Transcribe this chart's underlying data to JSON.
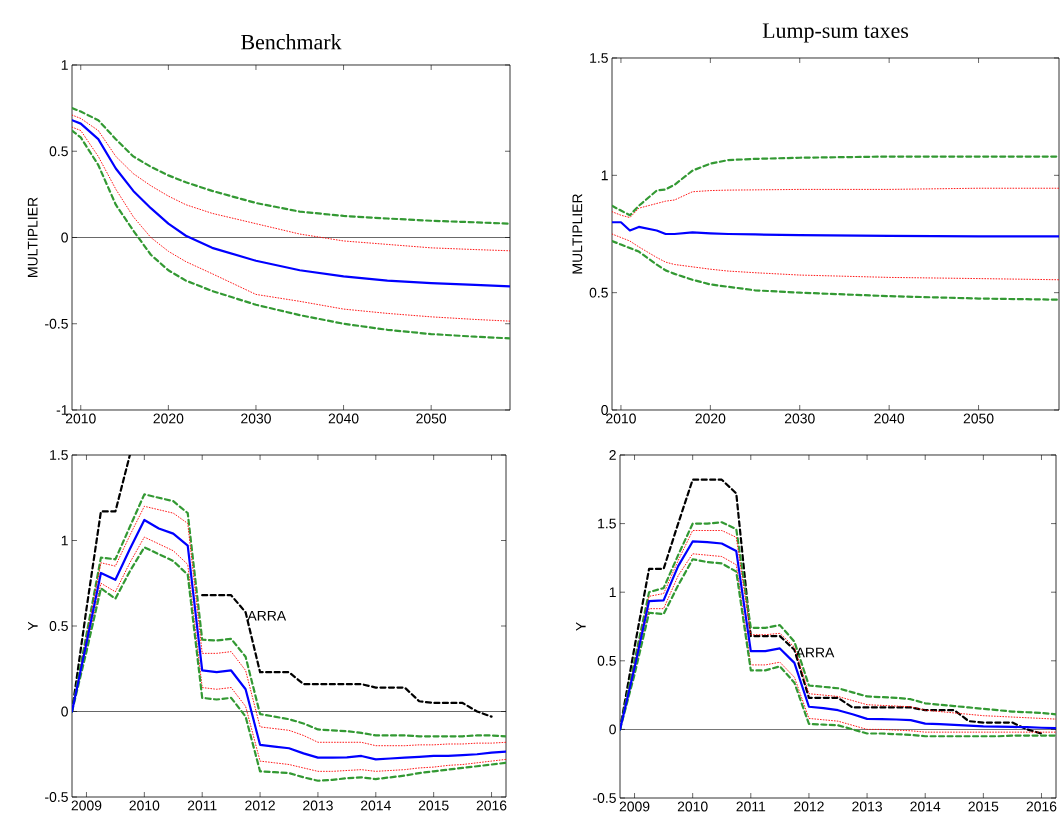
{
  "chart_data": [
    {
      "type": "line",
      "title": "Benchmark",
      "ylabel": "MULTIPLIER",
      "xlim": [
        2009,
        2059
      ],
      "ylim": [
        -1,
        1
      ],
      "xticks": [
        2010,
        2020,
        2030,
        2040,
        2050
      ],
      "yticks": [
        -1,
        -0.5,
        0,
        0.5,
        1
      ],
      "x": [
        2009,
        2010,
        2012,
        2014,
        2016,
        2018,
        2020,
        2022,
        2025,
        2030,
        2035,
        2040,
        2045,
        2050,
        2055,
        2059
      ],
      "ref_lines": [
        {
          "axis": "y",
          "value": 0,
          "color": "#000000"
        }
      ],
      "series": [
        {
          "color": "#339933",
          "line_style": "dashed",
          "values": [
            0.75,
            0.73,
            0.68,
            0.57,
            0.47,
            0.41,
            0.36,
            0.32,
            0.27,
            0.2,
            0.15,
            0.125,
            0.11,
            0.097,
            0.088,
            0.08
          ]
        },
        {
          "color": "#ff0000",
          "line_style": "dotted",
          "values": [
            0.71,
            0.69,
            0.62,
            0.47,
            0.37,
            0.3,
            0.24,
            0.19,
            0.14,
            0.08,
            0.02,
            -0.02,
            -0.04,
            -0.06,
            -0.07,
            -0.077
          ]
        },
        {
          "color": "#ff0000",
          "line_style": "dotted",
          "values": [
            0.64,
            0.62,
            0.47,
            0.28,
            0.12,
            0.0,
            -0.08,
            -0.14,
            -0.21,
            -0.33,
            -0.37,
            -0.415,
            -0.44,
            -0.46,
            -0.475,
            -0.485
          ]
        },
        {
          "color": "#339933",
          "line_style": "dashed",
          "values": [
            0.62,
            0.58,
            0.42,
            0.19,
            0.04,
            -0.1,
            -0.19,
            -0.25,
            -0.31,
            -0.39,
            -0.45,
            -0.5,
            -0.535,
            -0.56,
            -0.575,
            -0.585
          ]
        },
        {
          "color": "#0000ff",
          "line_style": "solid",
          "values": [
            0.68,
            0.66,
            0.57,
            0.4,
            0.27,
            0.17,
            0.08,
            0.01,
            -0.06,
            -0.135,
            -0.19,
            -0.225,
            -0.25,
            -0.265,
            -0.275,
            -0.283
          ]
        }
      ]
    },
    {
      "type": "line",
      "title": "Lump-sum taxes",
      "ylabel": "MULTIPLIER",
      "xlim": [
        2009,
        2059
      ],
      "ylim": [
        0,
        1.5
      ],
      "xticks": [
        2010,
        2020,
        2030,
        2040,
        2050
      ],
      "yticks": [
        0,
        0.5,
        1,
        1.5
      ],
      "x": [
        2009,
        2010,
        2011,
        2012,
        2014,
        2015,
        2016,
        2018,
        2020,
        2022,
        2025,
        2030,
        2040,
        2050,
        2059
      ],
      "series": [
        {
          "color": "#339933",
          "line_style": "dashed",
          "values": [
            0.87,
            0.85,
            0.83,
            0.87,
            0.935,
            0.94,
            0.96,
            1.02,
            1.05,
            1.065,
            1.07,
            1.075,
            1.08,
            1.08,
            1.08
          ]
        },
        {
          "color": "#ff0000",
          "line_style": "dotted",
          "values": [
            0.845,
            0.83,
            0.82,
            0.86,
            0.88,
            0.89,
            0.895,
            0.93,
            0.935,
            0.937,
            0.938,
            0.94,
            0.94,
            0.945,
            0.945
          ]
        },
        {
          "color": "#ff0000",
          "line_style": "dotted",
          "values": [
            0.75,
            0.735,
            0.72,
            0.695,
            0.65,
            0.63,
            0.62,
            0.61,
            0.6,
            0.592,
            0.585,
            0.575,
            0.565,
            0.56,
            0.555
          ]
        },
        {
          "color": "#339933",
          "line_style": "dashed",
          "values": [
            0.72,
            0.705,
            0.69,
            0.675,
            0.62,
            0.595,
            0.58,
            0.555,
            0.535,
            0.525,
            0.51,
            0.5,
            0.485,
            0.475,
            0.47
          ]
        },
        {
          "color": "#0000ff",
          "line_style": "solid",
          "values": [
            0.8,
            0.8,
            0.765,
            0.78,
            0.765,
            0.75,
            0.75,
            0.757,
            0.753,
            0.75,
            0.748,
            0.745,
            0.742,
            0.74,
            0.74
          ]
        }
      ]
    },
    {
      "type": "line",
      "ylabel": "Y",
      "xlim": [
        2008.75,
        2016.25
      ],
      "ylim": [
        -0.5,
        1.5
      ],
      "xticks": [
        2009,
        2010,
        2011,
        2012,
        2013,
        2014,
        2015,
        2016
      ],
      "yticks": [
        -0.5,
        0,
        0.5,
        1,
        1.5
      ],
      "x": [
        2008.75,
        2009,
        2009.25,
        2009.5,
        2009.75,
        2010,
        2010.25,
        2010.5,
        2010.75,
        2011,
        2011.25,
        2011.5,
        2011.75,
        2012,
        2012.25,
        2012.5,
        2012.75,
        2013,
        2013.25,
        2013.5,
        2013.75,
        2014,
        2014.25,
        2014.5,
        2014.75,
        2015,
        2015.25,
        2015.5,
        2015.75,
        2016,
        2016.25
      ],
      "ref_lines": [
        {
          "axis": "y",
          "value": 0,
          "color": "#000000"
        }
      ],
      "annotations": [
        {
          "text": "ARRA",
          "x": 2011.76,
          "y": 0.56
        }
      ],
      "series": [
        {
          "color": "#000000",
          "line_style": "dashed",
          "values": [
            0,
            0.6,
            1.17,
            1.17,
            1.5,
            null,
            null,
            null,
            null,
            0.68,
            0.68,
            0.68,
            0.58,
            0.23,
            0.23,
            0.23,
            0.16,
            0.16,
            0.16,
            0.16,
            0.16,
            0.14,
            0.14,
            0.14,
            0.06,
            0.05,
            0.05,
            0.05,
            0,
            -0.03,
            null
          ]
        },
        {
          "color": "#339933",
          "line_style": "dashed",
          "values": [
            0,
            0.45,
            0.9,
            0.89,
            1.08,
            1.27,
            1.25,
            1.23,
            1.16,
            0.42,
            0.415,
            0.425,
            0.32,
            -0.015,
            -0.03,
            -0.045,
            -0.07,
            -0.105,
            -0.11,
            -0.115,
            -0.125,
            -0.14,
            -0.14,
            -0.14,
            -0.145,
            -0.145,
            -0.145,
            -0.145,
            -0.14,
            -0.14,
            -0.145
          ]
        },
        {
          "color": "#ff0000",
          "line_style": "dotted",
          "values": [
            0,
            0.43,
            0.87,
            0.85,
            1.03,
            1.2,
            1.18,
            1.16,
            1.1,
            0.34,
            0.34,
            0.35,
            0.24,
            -0.09,
            -0.1,
            -0.11,
            -0.14,
            -0.18,
            -0.18,
            -0.18,
            -0.18,
            -0.2,
            -0.2,
            -0.2,
            -0.195,
            -0.195,
            -0.19,
            -0.19,
            -0.185,
            -0.185,
            -0.18
          ]
        },
        {
          "color": "#ff0000",
          "line_style": "dotted",
          "values": [
            0,
            0.37,
            0.75,
            0.7,
            0.87,
            1.02,
            0.98,
            0.94,
            0.86,
            0.14,
            0.13,
            0.14,
            0.03,
            -0.29,
            -0.3,
            -0.31,
            -0.33,
            -0.35,
            -0.35,
            -0.345,
            -0.34,
            -0.35,
            -0.345,
            -0.34,
            -0.33,
            -0.325,
            -0.315,
            -0.31,
            -0.3,
            -0.29,
            -0.28
          ]
        },
        {
          "color": "#339933",
          "line_style": "dashed",
          "values": [
            0,
            0.35,
            0.72,
            0.66,
            0.82,
            0.96,
            0.92,
            0.88,
            0.8,
            0.08,
            0.07,
            0.08,
            -0.03,
            -0.35,
            -0.355,
            -0.36,
            -0.385,
            -0.405,
            -0.4,
            -0.39,
            -0.385,
            -0.395,
            -0.385,
            -0.375,
            -0.36,
            -0.35,
            -0.34,
            -0.33,
            -0.32,
            -0.31,
            -0.3
          ]
        },
        {
          "color": "#0000ff",
          "line_style": "solid",
          "values": [
            0,
            0.4,
            0.81,
            0.77,
            0.95,
            1.12,
            1.07,
            1.04,
            0.97,
            0.24,
            0.23,
            0.24,
            0.13,
            -0.195,
            -0.205,
            -0.215,
            -0.245,
            -0.27,
            -0.27,
            -0.268,
            -0.26,
            -0.28,
            -0.275,
            -0.27,
            -0.265,
            -0.26,
            -0.26,
            -0.255,
            -0.25,
            -0.24,
            -0.235
          ]
        }
      ]
    },
    {
      "type": "line",
      "ylabel": "Y",
      "xlim": [
        2008.75,
        2016.25
      ],
      "ylim": [
        -0.5,
        2
      ],
      "xticks": [
        2009,
        2010,
        2011,
        2012,
        2013,
        2014,
        2015,
        2016
      ],
      "yticks": [
        -0.5,
        0,
        0.5,
        1,
        1.5,
        2
      ],
      "x": [
        2008.75,
        2009,
        2009.25,
        2009.5,
        2009.75,
        2010,
        2010.25,
        2010.5,
        2010.75,
        2011,
        2011.25,
        2011.5,
        2011.75,
        2012,
        2012.25,
        2012.5,
        2012.75,
        2013,
        2013.25,
        2013.5,
        2013.75,
        2014,
        2014.25,
        2014.5,
        2014.75,
        2015,
        2015.25,
        2015.5,
        2015.75,
        2016,
        2016.25
      ],
      "ref_lines": [
        {
          "axis": "y",
          "value": 0,
          "color": "#000000"
        }
      ],
      "annotations": [
        {
          "text": "ARRA",
          "x": 2011.75,
          "y": 0.56
        }
      ],
      "series": [
        {
          "color": "#000000",
          "line_style": "dashed",
          "values": [
            0,
            0.6,
            1.17,
            1.17,
            1.5,
            1.82,
            1.82,
            1.82,
            1.72,
            0.68,
            0.68,
            0.68,
            0.58,
            0.23,
            0.23,
            0.23,
            0.16,
            0.16,
            0.16,
            0.16,
            0.16,
            0.14,
            0.14,
            0.14,
            0.06,
            0.05,
            0.05,
            0.05,
            0,
            -0.03,
            null
          ]
        },
        {
          "color": "#339933",
          "line_style": "dashed",
          "values": [
            0,
            0.5,
            1.0,
            1.03,
            1.27,
            1.5,
            1.5,
            1.51,
            1.46,
            0.74,
            0.74,
            0.76,
            0.64,
            0.32,
            0.31,
            0.3,
            0.27,
            0.24,
            0.235,
            0.23,
            0.22,
            0.19,
            0.18,
            0.17,
            0.16,
            0.15,
            0.14,
            0.13,
            0.125,
            0.12,
            0.11
          ]
        },
        {
          "color": "#ff0000",
          "line_style": "dotted",
          "values": [
            0,
            0.48,
            0.97,
            0.99,
            1.23,
            1.45,
            1.45,
            1.45,
            1.4,
            0.69,
            0.69,
            0.7,
            0.6,
            0.26,
            0.25,
            0.24,
            0.21,
            0.18,
            0.175,
            0.17,
            0.165,
            0.14,
            0.13,
            0.12,
            0.11,
            0.1,
            0.095,
            0.09,
            0.085,
            0.08,
            0.075
          ]
        },
        {
          "color": "#ff0000",
          "line_style": "dotted",
          "values": [
            0,
            0.42,
            0.88,
            0.88,
            1.12,
            1.28,
            1.27,
            1.26,
            1.2,
            0.47,
            0.47,
            0.49,
            0.38,
            0.08,
            0.07,
            0.06,
            0.03,
            0,
            0,
            -0.005,
            -0.01,
            -0.02,
            -0.02,
            -0.02,
            -0.02,
            -0.02,
            -0.02,
            -0.02,
            -0.02,
            -0.02,
            -0.02
          ]
        },
        {
          "color": "#339933",
          "line_style": "dashed",
          "values": [
            0,
            0.4,
            0.85,
            0.84,
            1.05,
            1.24,
            1.22,
            1.21,
            1.15,
            0.43,
            0.43,
            0.46,
            0.34,
            0.04,
            0.035,
            0.03,
            0,
            -0.03,
            -0.03,
            -0.035,
            -0.04,
            -0.05,
            -0.05,
            -0.05,
            -0.05,
            -0.05,
            -0.05,
            -0.045,
            -0.045,
            -0.045,
            -0.045
          ]
        },
        {
          "color": "#0000ff",
          "line_style": "solid",
          "values": [
            0,
            0.45,
            0.935,
            0.94,
            1.19,
            1.37,
            1.365,
            1.355,
            1.3,
            0.57,
            0.57,
            0.59,
            0.485,
            0.165,
            0.155,
            0.14,
            0.11,
            0.077,
            0.075,
            0.072,
            0.068,
            0.042,
            0.038,
            0.033,
            0.028,
            0.022,
            0.02,
            0.018,
            0.016,
            0.012,
            0.01
          ]
        }
      ]
    }
  ]
}
